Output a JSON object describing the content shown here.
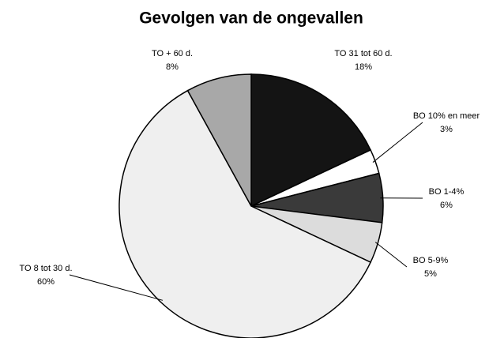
{
  "chart_data": {
    "type": "pie",
    "title": "Gevolgen van de ongevallen",
    "categories": [
      "TO 31 tot 60 d.",
      "BO 10% en meer",
      "BO 1-4%",
      "BO 5-9%",
      "TO 8 tot 30 d.",
      "TO + 60 d."
    ],
    "values": [
      18,
      3,
      6,
      5,
      60,
      8
    ],
    "value_labels": [
      "18%",
      "3%",
      "6%",
      "5%",
      "60%",
      "8%"
    ],
    "colors": [
      "#141414",
      "#ffffff",
      "#3a3a3a",
      "#dcdcdc",
      "#efefef",
      "#a8a8a8"
    ]
  }
}
